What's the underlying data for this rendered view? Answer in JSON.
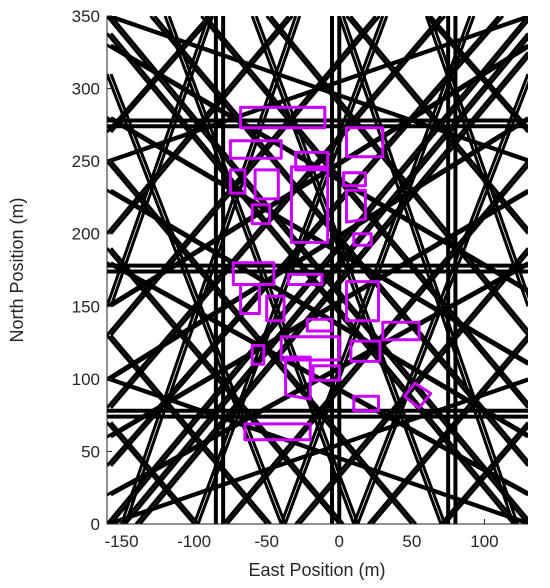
{
  "chart_data": {
    "type": "line",
    "xlabel": "East Position (m)",
    "ylabel": "North Position (m)",
    "xlim": [
      -160,
      130
    ],
    "ylim": [
      0,
      350
    ],
    "x_ticks": [
      -150,
      -100,
      -50,
      0,
      50,
      100
    ],
    "y_ticks": [
      0,
      50,
      100,
      150,
      200,
      250,
      300,
      350
    ],
    "grid": false,
    "colors": {
      "paths": "#000000",
      "obstacles": "#cc00ff",
      "axes": "#262626"
    },
    "vertical_paths": [
      {
        "x": -85,
        "y0": 0,
        "y1": 350
      },
      {
        "x": -80,
        "y0": 0,
        "y1": 350
      },
      {
        "x": -5,
        "y0": 0,
        "y1": 350
      },
      {
        "x": 0,
        "y0": 0,
        "y1": 350
      },
      {
        "x": 75,
        "y0": 0,
        "y1": 350
      },
      {
        "x": 80,
        "y0": 0,
        "y1": 350
      }
    ],
    "horizontal_paths": [
      {
        "y": 74,
        "x0": -160,
        "x1": 130
      },
      {
        "y": 78,
        "x0": -160,
        "x1": 130
      },
      {
        "y": 174,
        "x0": -160,
        "x1": 130
      },
      {
        "y": 178,
        "x0": -160,
        "x1": 130
      },
      {
        "y": 274,
        "x0": -160,
        "x1": 130
      },
      {
        "y": 278,
        "x0": -160,
        "x1": 130
      }
    ],
    "diagonal_paths": [
      {
        "x0": -160,
        "y0": 0,
        "x1": 130,
        "y1": 350
      },
      {
        "x0": -150,
        "y0": 0,
        "x1": 130,
        "y1": 338
      },
      {
        "x0": -140,
        "y0": 0,
        "x1": 130,
        "y1": 325
      },
      {
        "x0": -160,
        "y0": 40,
        "x1": 110,
        "y1": 350
      },
      {
        "x0": -160,
        "y0": 80,
        "x1": 70,
        "y1": 350
      },
      {
        "x0": -160,
        "y0": 130,
        "x1": 25,
        "y1": 350
      },
      {
        "x0": -160,
        "y0": 200,
        "x1": -35,
        "y1": 350
      },
      {
        "x0": -160,
        "y0": 270,
        "x1": -90,
        "y1": 350
      },
      {
        "x0": -80,
        "y0": 0,
        "x1": 130,
        "y1": 250
      },
      {
        "x0": -30,
        "y0": 0,
        "x1": 130,
        "y1": 190
      },
      {
        "x0": 20,
        "y0": 0,
        "x1": 130,
        "y1": 130
      },
      {
        "x0": 70,
        "y0": 0,
        "x1": 130,
        "y1": 70
      },
      {
        "x0": 130,
        "y0": 0,
        "x1": -160,
        "y1": 350
      },
      {
        "x0": 120,
        "y0": 0,
        "x1": -160,
        "y1": 338
      },
      {
        "x0": 130,
        "y0": 40,
        "x1": -130,
        "y1": 350
      },
      {
        "x0": 130,
        "y0": 80,
        "x1": -95,
        "y1": 350
      },
      {
        "x0": 130,
        "y0": 130,
        "x1": -50,
        "y1": 350
      },
      {
        "x0": 130,
        "y0": 200,
        "x1": 5,
        "y1": 350
      },
      {
        "x0": 130,
        "y0": 270,
        "x1": 60,
        "y1": 350
      },
      {
        "x0": 50,
        "y0": 0,
        "x1": -160,
        "y1": 250
      },
      {
        "x0": 0,
        "y0": 0,
        "x1": -160,
        "y1": 190
      },
      {
        "x0": -50,
        "y0": 0,
        "x1": -160,
        "y1": 130
      },
      {
        "x0": -100,
        "y0": 0,
        "x1": -160,
        "y1": 70
      },
      {
        "x0": -160,
        "y0": 60,
        "x1": 130,
        "y1": 230
      },
      {
        "x0": -160,
        "y0": 100,
        "x1": 130,
        "y1": 280
      },
      {
        "x0": -160,
        "y0": 150,
        "x1": 130,
        "y1": 330
      },
      {
        "x0": -160,
        "y0": 20,
        "x1": 130,
        "y1": 180
      },
      {
        "x0": -160,
        "y0": 230,
        "x1": 130,
        "y1": 60
      },
      {
        "x0": -160,
        "y0": 280,
        "x1": 130,
        "y1": 110
      },
      {
        "x0": -160,
        "y0": 330,
        "x1": 130,
        "y1": 160
      },
      {
        "x0": -160,
        "y0": 180,
        "x1": 130,
        "y1": 20
      },
      {
        "x0": -160,
        "y0": 310,
        "x1": -40,
        "y1": 0
      },
      {
        "x0": -120,
        "y0": 350,
        "x1": 10,
        "y1": 0
      },
      {
        "x0": -60,
        "y0": 350,
        "x1": 70,
        "y1": 0
      },
      {
        "x0": 0,
        "y0": 350,
        "x1": 120,
        "y1": 0
      },
      {
        "x0": 60,
        "y0": 350,
        "x1": 130,
        "y1": 150
      },
      {
        "x0": 130,
        "y0": 310,
        "x1": 10,
        "y1": 0
      },
      {
        "x0": 90,
        "y0": 350,
        "x1": -40,
        "y1": 0
      },
      {
        "x0": 30,
        "y0": 350,
        "x1": -100,
        "y1": 0
      },
      {
        "x0": -30,
        "y0": 350,
        "x1": -150,
        "y1": 0
      },
      {
        "x0": -90,
        "y0": 350,
        "x1": -160,
        "y1": 150
      },
      {
        "x0": -160,
        "y0": 250,
        "x1": 130,
        "y1": 350
      },
      {
        "x0": -160,
        "y0": 100,
        "x1": 130,
        "y1": 0
      },
      {
        "x0": -160,
        "y0": 0,
        "x1": 130,
        "y1": 100
      },
      {
        "x0": -160,
        "y0": 350,
        "x1": 130,
        "y1": 250
      }
    ],
    "obstacles": [
      [
        [
          -68,
          273
        ],
        [
          -10,
          273
        ],
        [
          -10,
          287
        ],
        [
          -68,
          287
        ]
      ],
      [
        [
          -75,
          252
        ],
        [
          -40,
          252
        ],
        [
          -40,
          264
        ],
        [
          -75,
          264
        ]
      ],
      [
        [
          5,
          253
        ],
        [
          30,
          253
        ],
        [
          30,
          273
        ],
        [
          5,
          273
        ]
      ],
      [
        [
          -75,
          228
        ],
        [
          -65,
          228
        ],
        [
          -65,
          244
        ],
        [
          -75,
          244
        ]
      ],
      [
        [
          -58,
          224
        ],
        [
          -42,
          224
        ],
        [
          -42,
          244
        ],
        [
          -58,
          244
        ]
      ],
      [
        [
          -30,
          244
        ],
        [
          -8,
          244
        ],
        [
          -8,
          256
        ],
        [
          -30,
          256
        ]
      ],
      [
        [
          -33,
          194
        ],
        [
          -8,
          194
        ],
        [
          -8,
          246
        ],
        [
          -33,
          246
        ]
      ],
      [
        [
          3,
          233
        ],
        [
          18,
          233
        ],
        [
          18,
          242
        ],
        [
          3,
          242
        ]
      ],
      [
        [
          5,
          208
        ],
        [
          18,
          210
        ],
        [
          18,
          230
        ],
        [
          5,
          230
        ]
      ],
      [
        [
          -60,
          207
        ],
        [
          -48,
          207
        ],
        [
          -48,
          220
        ],
        [
          -60,
          220
        ]
      ],
      [
        [
          10,
          192
        ],
        [
          22,
          192
        ],
        [
          22,
          200
        ],
        [
          10,
          200
        ]
      ],
      [
        [
          -73,
          165
        ],
        [
          -45,
          165
        ],
        [
          -45,
          180
        ],
        [
          -73,
          180
        ]
      ],
      [
        [
          -35,
          165
        ],
        [
          -12,
          165
        ],
        [
          -12,
          172
        ],
        [
          -35,
          172
        ]
      ],
      [
        [
          -68,
          145
        ],
        [
          -55,
          145
        ],
        [
          -55,
          165
        ],
        [
          -68,
          165
        ]
      ],
      [
        [
          -50,
          140
        ],
        [
          -38,
          140
        ],
        [
          -38,
          157
        ],
        [
          -50,
          157
        ]
      ],
      [
        [
          5,
          140
        ],
        [
          27,
          140
        ],
        [
          27,
          167
        ],
        [
          5,
          167
        ]
      ],
      [
        [
          -22,
          133
        ],
        [
          -5,
          133
        ],
        [
          -5,
          141
        ],
        [
          -22,
          141
        ]
      ],
      [
        [
          30,
          127
        ],
        [
          55,
          127
        ],
        [
          55,
          139
        ],
        [
          30,
          139
        ]
      ],
      [
        [
          -40,
          113
        ],
        [
          0,
          113
        ],
        [
          0,
          129
        ],
        [
          -40,
          129
        ]
      ],
      [
        [
          -60,
          110
        ],
        [
          -52,
          110
        ],
        [
          -52,
          123
        ],
        [
          -60,
          123
        ]
      ],
      [
        [
          8,
          112
        ],
        [
          28,
          112
        ],
        [
          28,
          126
        ],
        [
          8,
          126
        ]
      ],
      [
        [
          -37,
          89
        ],
        [
          -20,
          86
        ],
        [
          -20,
          115
        ],
        [
          -37,
          115
        ]
      ],
      [
        [
          -18,
          99
        ],
        [
          0,
          99
        ],
        [
          0,
          109
        ],
        [
          -18,
          109
        ]
      ],
      [
        [
          10,
          78
        ],
        [
          27,
          78
        ],
        [
          27,
          88
        ],
        [
          10,
          88
        ]
      ],
      [
        [
          45,
          88
        ],
        [
          55,
          80
        ],
        [
          63,
          90
        ],
        [
          52,
          97
        ]
      ],
      [
        [
          -65,
          58
        ],
        [
          -20,
          58
        ],
        [
          -20,
          69
        ],
        [
          -65,
          69
        ]
      ]
    ]
  }
}
